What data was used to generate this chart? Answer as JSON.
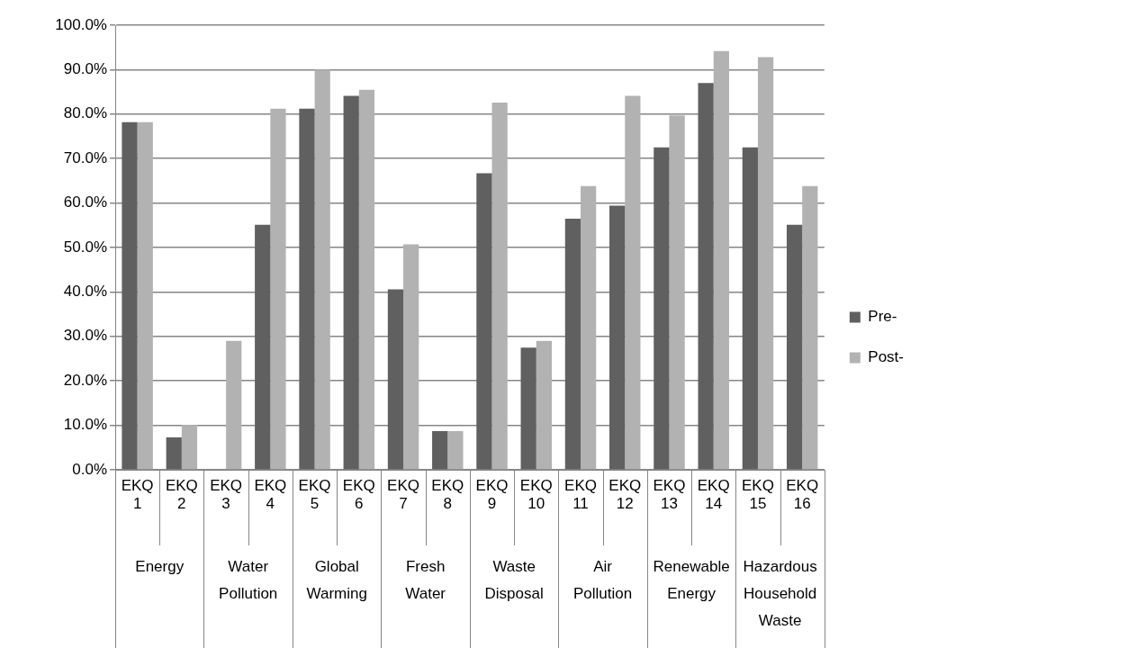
{
  "chart_data": {
    "type": "bar",
    "categories": [
      "EKQ 1",
      "EKQ 2",
      "EKQ 3",
      "EKQ 4",
      "EKQ 5",
      "EKQ 6",
      "EKQ 7",
      "EKQ 8",
      "EKQ 9",
      "EKQ 10",
      "EKQ 11",
      "EKQ 12",
      "EKQ 13",
      "EKQ 14",
      "EKQ 15",
      "EKQ 16"
    ],
    "series": [
      {
        "name": "Pre-",
        "color": "#606060",
        "values": [
          78.2,
          7.3,
          0,
          55.1,
          81.2,
          84.1,
          40.6,
          8.7,
          66.7,
          27.5,
          56.5,
          59.4,
          72.5,
          87.0,
          72.5,
          55.1
        ]
      },
      {
        "name": "Post-",
        "color": "#b2b2b2",
        "values": [
          78.2,
          10.1,
          29.0,
          81.2,
          90.0,
          85.5,
          50.7,
          8.7,
          82.6,
          29.0,
          63.8,
          84.1,
          79.7,
          94.2,
          92.8,
          63.8
        ]
      }
    ],
    "annotations": [
      "Energy",
      "Water Pollution",
      "Global Warming",
      "Fresh Water",
      "Waste Disposal",
      "Air Pollution",
      "Renewable Energy",
      "Hazardous Household Waste"
    ],
    "ylim": [
      0,
      100
    ],
    "yticks": [
      {
        "value": 0,
        "label": "0.0%"
      },
      {
        "value": 10,
        "label": "10.0%"
      },
      {
        "value": 20,
        "label": "20.0%"
      },
      {
        "value": 30,
        "label": "30.0%"
      },
      {
        "value": 40,
        "label": "40.0%"
      },
      {
        "value": 50,
        "label": "50.0%"
      },
      {
        "value": 60,
        "label": "60.0%"
      },
      {
        "value": 70,
        "label": "70.0%"
      },
      {
        "value": 80,
        "label": "80.0%"
      },
      {
        "value": 90,
        "label": "90.0%"
      },
      {
        "value": 100,
        "label": "100.0%"
      }
    ],
    "grid": "y",
    "legend": "right"
  }
}
